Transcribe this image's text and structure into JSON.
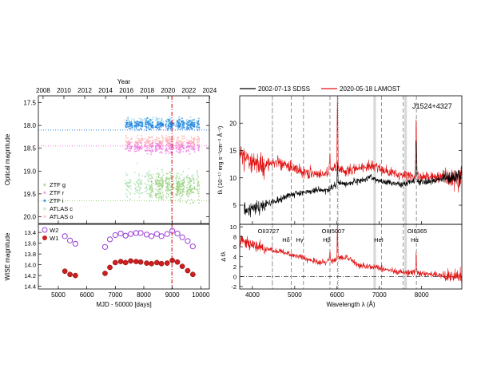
{
  "chart_data": [
    {
      "type": "scatter",
      "panel": "optical-lightcurve",
      "title": "",
      "xlabel": "",
      "ylabel": "Optical magnitude",
      "top_axis_label": "Year",
      "top_axis_ticks": [
        "2008",
        "2010",
        "2012",
        "2014",
        "2016",
        "2018",
        "2020",
        "2022",
        "2024"
      ],
      "xlim": [
        4300,
        10300
      ],
      "ylim": [
        20.15,
        17.35
      ],
      "y_inverted": true,
      "y_ticks": [
        "17.5",
        "18.0",
        "18.5",
        "19.0",
        "19.5",
        "20.0"
      ],
      "vertical_marker_mjd": 8987,
      "legend_position": "bottom-left",
      "series": [
        {
          "name": "ZTF g",
          "color": "#9ad07a",
          "mjd_range": [
            8200,
            9950
          ],
          "mag_mean": 19.35,
          "mag_scatter": 0.28,
          "sdss_level": 19.65
        },
        {
          "name": "ZTF r",
          "color": "#f07de0",
          "mjd_range": [
            7350,
            9950
          ],
          "mag_mean": 18.48,
          "mag_scatter": 0.12,
          "sdss_level": 18.45
        },
        {
          "name": "ZTF i",
          "color": "#1f7fe0",
          "mjd_range": [
            7350,
            9950
          ],
          "mag_mean": 17.98,
          "mag_scatter": 0.1,
          "sdss_level": 18.1
        },
        {
          "name": "ATLAS c",
          "color": "#a8e0b0",
          "mjd_range": [
            7350,
            9950
          ],
          "mag_mean": 19.3,
          "mag_scatter": 0.3
        },
        {
          "name": "ATLAS o",
          "color": "#ffb6b6",
          "mjd_range": [
            7350,
            9950
          ],
          "mag_mean": 18.35,
          "mag_scatter": 0.12
        }
      ],
      "extra_bands": [
        {
          "color": "#87cde8",
          "mjd_range": [
            7350,
            9950
          ],
          "mag_mean": 17.95,
          "mag_scatter": 0.13
        }
      ]
    },
    {
      "type": "scatter",
      "panel": "wise-lightcurve",
      "xlabel": "MJD - 50000 [days]",
      "ylabel": "WISE magnitude",
      "xlim": [
        4300,
        10300
      ],
      "x_ticks": [
        "5000",
        "6000",
        "7000",
        "8000",
        "9000",
        "10000"
      ],
      "ylim": [
        14.45,
        13.25
      ],
      "y_inverted": true,
      "y_ticks": [
        "13.4",
        "13.6",
        "13.8",
        "14.0",
        "14.2",
        "14.4"
      ],
      "legend_position": "top-left",
      "series": [
        {
          "name": "W2",
          "style": "open-circle",
          "color": "#9a3fd8",
          "x": [
            5230,
            5410,
            5600,
            6640,
            6810,
            7000,
            7190,
            7360,
            7540,
            7730,
            7890,
            8100,
            8270,
            8460,
            8620,
            8820,
            9000,
            9180,
            9350,
            9540,
            9720
          ],
          "y": [
            13.47,
            13.55,
            13.61,
            13.67,
            13.53,
            13.45,
            13.42,
            13.46,
            13.43,
            13.41,
            13.41,
            13.44,
            13.47,
            13.43,
            13.47,
            13.43,
            13.37,
            13.42,
            13.49,
            13.56,
            13.66
          ]
        },
        {
          "name": "W1",
          "style": "filled-circle",
          "color": "#cc1f1f",
          "x": [
            5230,
            5410,
            5600,
            6640,
            6810,
            7000,
            7190,
            7360,
            7540,
            7730,
            7890,
            8100,
            8270,
            8460,
            8620,
            8820,
            9000,
            9180,
            9350,
            9540,
            9720
          ],
          "y": [
            14.12,
            14.18,
            14.2,
            14.16,
            14.05,
            13.96,
            13.94,
            13.96,
            13.93,
            13.94,
            13.95,
            13.97,
            13.98,
            13.96,
            13.98,
            13.97,
            13.92,
            13.95,
            14.03,
            14.11,
            14.18
          ]
        }
      ]
    },
    {
      "type": "line",
      "panel": "spectra",
      "xlabel": "",
      "ylabel": "fλ (10⁻¹⁷ erg s⁻¹cm⁻² Å⁻¹)",
      "annotation": "J1524+4327",
      "xlim": [
        3700,
        8950
      ],
      "ylim": [
        1.5,
        25
      ],
      "y_ticks": [
        "5",
        "10",
        "15",
        "20"
      ],
      "legend_position": "top",
      "series": [
        {
          "name": "2002-07-13 SDSS",
          "color": "#000000",
          "x": [
            3800,
            4000,
            4200,
            4400,
            4600,
            4800,
            5000,
            5200,
            5400,
            5600,
            5800,
            6000,
            6200,
            6400,
            6600,
            6800,
            7000,
            7200,
            7400,
            7600,
            7800,
            8000,
            8200,
            8400,
            8600,
            8800,
            8950
          ],
          "y": [
            4.0,
            4.6,
            4.8,
            5.4,
            5.9,
            6.6,
            7.0,
            7.3,
            7.6,
            7.8,
            7.7,
            9.0,
            9.0,
            9.3,
            9.6,
            10.1,
            9.5,
            9.1,
            8.9,
            8.9,
            9.4,
            9.3,
            9.4,
            9.6,
            9.9,
            10.2,
            10.4
          ]
        },
        {
          "name": "2020-05-18 LAMOST",
          "color": "#e01010",
          "x": [
            3700,
            3800,
            4000,
            4200,
            4400,
            4600,
            4800,
            5000,
            5200,
            5400,
            5600,
            5800,
            6000,
            6200,
            6400,
            6600,
            6800,
            7000,
            7200,
            7400,
            7600,
            7800,
            8000,
            8200,
            8400,
            8600,
            8800,
            8950
          ],
          "y": [
            14.5,
            13.5,
            12.8,
            12.3,
            12.6,
            13.0,
            12.3,
            11.6,
            11.1,
            10.9,
            10.5,
            11.0,
            11.8,
            11.4,
            11.6,
            12.0,
            12.3,
            11.7,
            11.2,
            10.7,
            10.6,
            10.2,
            10.1,
            10.0,
            10.2,
            10.1,
            10.0,
            9.9
          ]
        }
      ],
      "line_markers": [
        {
          "label": "OII3727",
          "x": 3727
        },
        {
          "label": "Hδ",
          "x": 4101
        },
        {
          "label": "Hγ",
          "x": 4340
        },
        {
          "label": "Hβ",
          "x": 4861
        },
        {
          "label": "OIII5007",
          "x": 5007
        },
        {
          "label": "HeI",
          "x": 5876
        },
        {
          "label": "OI6365",
          "x": 6300
        },
        {
          "label": "Hα",
          "x": 6563
        }
      ]
    },
    {
      "type": "line",
      "panel": "difference-spectrum",
      "xlabel": "Wavelength λ (Å)",
      "ylabel": "Δ fλ",
      "xlim": [
        3700,
        8950
      ],
      "x_ticks": [
        "4000",
        "5000",
        "6000",
        "7000",
        "8000"
      ],
      "ylim": [
        -2.5,
        10.5
      ],
      "y_ticks": [
        "-2",
        "0",
        "2",
        "4",
        "6",
        "8",
        "10"
      ],
      "series": [
        {
          "name": "LAMOST - SDSS",
          "color": "#e01010",
          "x": [
            3700,
            3900,
            4100,
            4300,
            4500,
            4700,
            4900,
            5100,
            5300,
            5500,
            5700,
            5900,
            6100,
            6300,
            6500,
            6700,
            6900,
            7100,
            7300,
            7500,
            7700,
            7900,
            8100,
            8300,
            8500,
            8700,
            8950
          ],
          "y": [
            7.2,
            6.3,
            6.2,
            5.6,
            5.2,
            5.0,
            4.4,
            4.1,
            3.4,
            3.0,
            2.8,
            3.2,
            3.9,
            3.6,
            2.2,
            2.1,
            1.9,
            1.6,
            1.1,
            0.9,
            0.7,
            0.6,
            0.5,
            0.4,
            0.2,
            0.1,
            0.0
          ]
        }
      ]
    }
  ]
}
